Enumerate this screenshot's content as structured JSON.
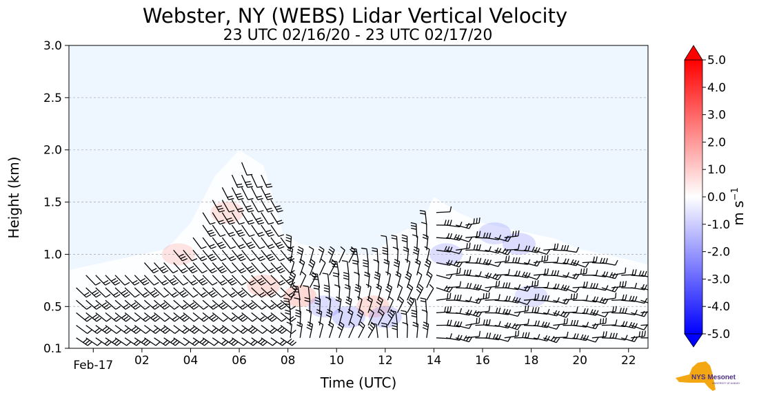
{
  "chart_data": {
    "type": "heatmap",
    "title": "Webster, NY (WEBS) Lidar Vertical Velocity",
    "subtitle": "23 UTC 02/16/20 - 23 UTC 02/17/20",
    "xlabel": "Time (UTC)",
    "ylabel": "Height (km)",
    "x_range_hours": [
      23,
      46.8
    ],
    "ylim": [
      0.1,
      3.0
    ],
    "x_ticks": [
      {
        "hour": 24,
        "label": "Feb-17"
      },
      {
        "hour": 26,
        "label": "02"
      },
      {
        "hour": 28,
        "label": "04"
      },
      {
        "hour": 30,
        "label": "06"
      },
      {
        "hour": 32,
        "label": "08"
      },
      {
        "hour": 34,
        "label": "10"
      },
      {
        "hour": 36,
        "label": "12"
      },
      {
        "hour": 38,
        "label": "14"
      },
      {
        "hour": 40,
        "label": "16"
      },
      {
        "hour": 42,
        "label": "18"
      },
      {
        "hour": 44,
        "label": "20"
      },
      {
        "hour": 46,
        "label": "22"
      }
    ],
    "y_ticks": [
      {
        "value": 0.1,
        "label": "0.1"
      },
      {
        "value": 0.5,
        "label": "0.5"
      },
      {
        "value": 1.0,
        "label": "1.0"
      },
      {
        "value": 1.5,
        "label": "1.5"
      },
      {
        "value": 2.0,
        "label": "2.0"
      },
      {
        "value": 2.5,
        "label": "2.5"
      },
      {
        "value": 3.0,
        "label": "3.0"
      }
    ],
    "grid_lines_y": [
      0.5,
      1.0,
      1.5,
      2.0,
      2.5
    ],
    "colorbar": {
      "label": "m s",
      "label_superscript": "−1",
      "min": -5.0,
      "max": 5.0,
      "step": 0.5,
      "extend": "both",
      "tick_labels": [
        "5.0",
        "4.0",
        "3.0",
        "2.0",
        "1.0",
        "0.0",
        "-1.0",
        "-2.0",
        "-3.0",
        "-4.0",
        "-5.0"
      ],
      "tick_values": [
        5,
        4,
        3,
        2,
        1,
        0,
        -1,
        -2,
        -3,
        -4,
        -5
      ]
    },
    "data_extent_km": [
      [
        23.0,
        0.85
      ],
      [
        24.0,
        0.9
      ],
      [
        25.0,
        0.95
      ],
      [
        26.0,
        1.0
      ],
      [
        27.0,
        1.05
      ],
      [
        28.0,
        1.3
      ],
      [
        29.0,
        1.75
      ],
      [
        30.0,
        2.0
      ],
      [
        31.0,
        1.85
      ],
      [
        31.8,
        1.2
      ],
      [
        32.5,
        1.1
      ],
      [
        33.5,
        1.05
      ],
      [
        34.5,
        1.0
      ],
      [
        35.5,
        1.0
      ],
      [
        36.5,
        1.2
      ],
      [
        37.5,
        1.3
      ],
      [
        38.0,
        1.55
      ],
      [
        39.0,
        1.4
      ],
      [
        40.0,
        1.3
      ],
      [
        41.0,
        1.25
      ],
      [
        42.0,
        1.2
      ],
      [
        43.0,
        1.15
      ],
      [
        44.0,
        1.05
      ],
      [
        45.0,
        1.0
      ],
      [
        46.0,
        0.95
      ],
      [
        46.8,
        0.9
      ]
    ],
    "velocity_cells": [
      {
        "hour": 27.5,
        "height": 1.0,
        "value": 0.3
      },
      {
        "hour": 29.5,
        "height": 1.4,
        "value": 0.4
      },
      {
        "hour": 31.0,
        "height": 0.7,
        "value": 0.5
      },
      {
        "hour": 32.5,
        "height": 0.6,
        "value": 0.8
      },
      {
        "hour": 33.5,
        "height": 0.5,
        "value": -0.6
      },
      {
        "hour": 34.5,
        "height": 0.4,
        "value": -0.8
      },
      {
        "hour": 35.5,
        "height": 0.5,
        "value": 0.6
      },
      {
        "hour": 36.0,
        "height": 0.4,
        "value": -0.7
      },
      {
        "hour": 38.5,
        "height": 1.0,
        "value": -0.6
      },
      {
        "hour": 40.5,
        "height": 1.2,
        "value": -0.5
      },
      {
        "hour": 41.5,
        "height": 1.1,
        "value": -0.7
      },
      {
        "hour": 42.0,
        "height": 0.6,
        "value": -0.4
      }
    ],
    "barb_columns_hours": [
      23.3,
      23.7,
      24.1,
      24.5,
      24.9,
      25.3,
      25.7,
      26.1,
      26.5,
      26.9,
      27.3,
      27.7,
      28.1,
      28.5,
      28.9,
      29.3,
      29.7,
      30.1,
      30.5,
      30.9,
      31.3,
      31.7,
      32.1,
      32.5,
      32.9,
      33.3,
      33.7,
      34.1,
      34.5,
      34.9,
      35.3,
      35.7,
      36.1,
      36.5,
      36.9,
      37.3,
      37.7,
      38.1,
      38.5,
      38.9,
      39.3,
      39.7,
      40.1,
      40.5,
      40.9,
      41.3,
      41.7,
      42.1,
      42.5,
      42.9,
      43.3,
      43.7,
      44.1,
      44.5,
      44.9,
      45.3,
      45.7,
      46.1,
      46.5
    ]
  },
  "logo": {
    "text_main": "NYS Mesonet",
    "text_sub": "UNIVERSITY AT ALBANY"
  },
  "colors": {
    "background": "#eef6ff",
    "positive": "#ff0000",
    "negative": "#0000ff",
    "grid": "#b0b0b0",
    "logo_gold": "#f3a712",
    "logo_purple": "#4b2e83"
  }
}
